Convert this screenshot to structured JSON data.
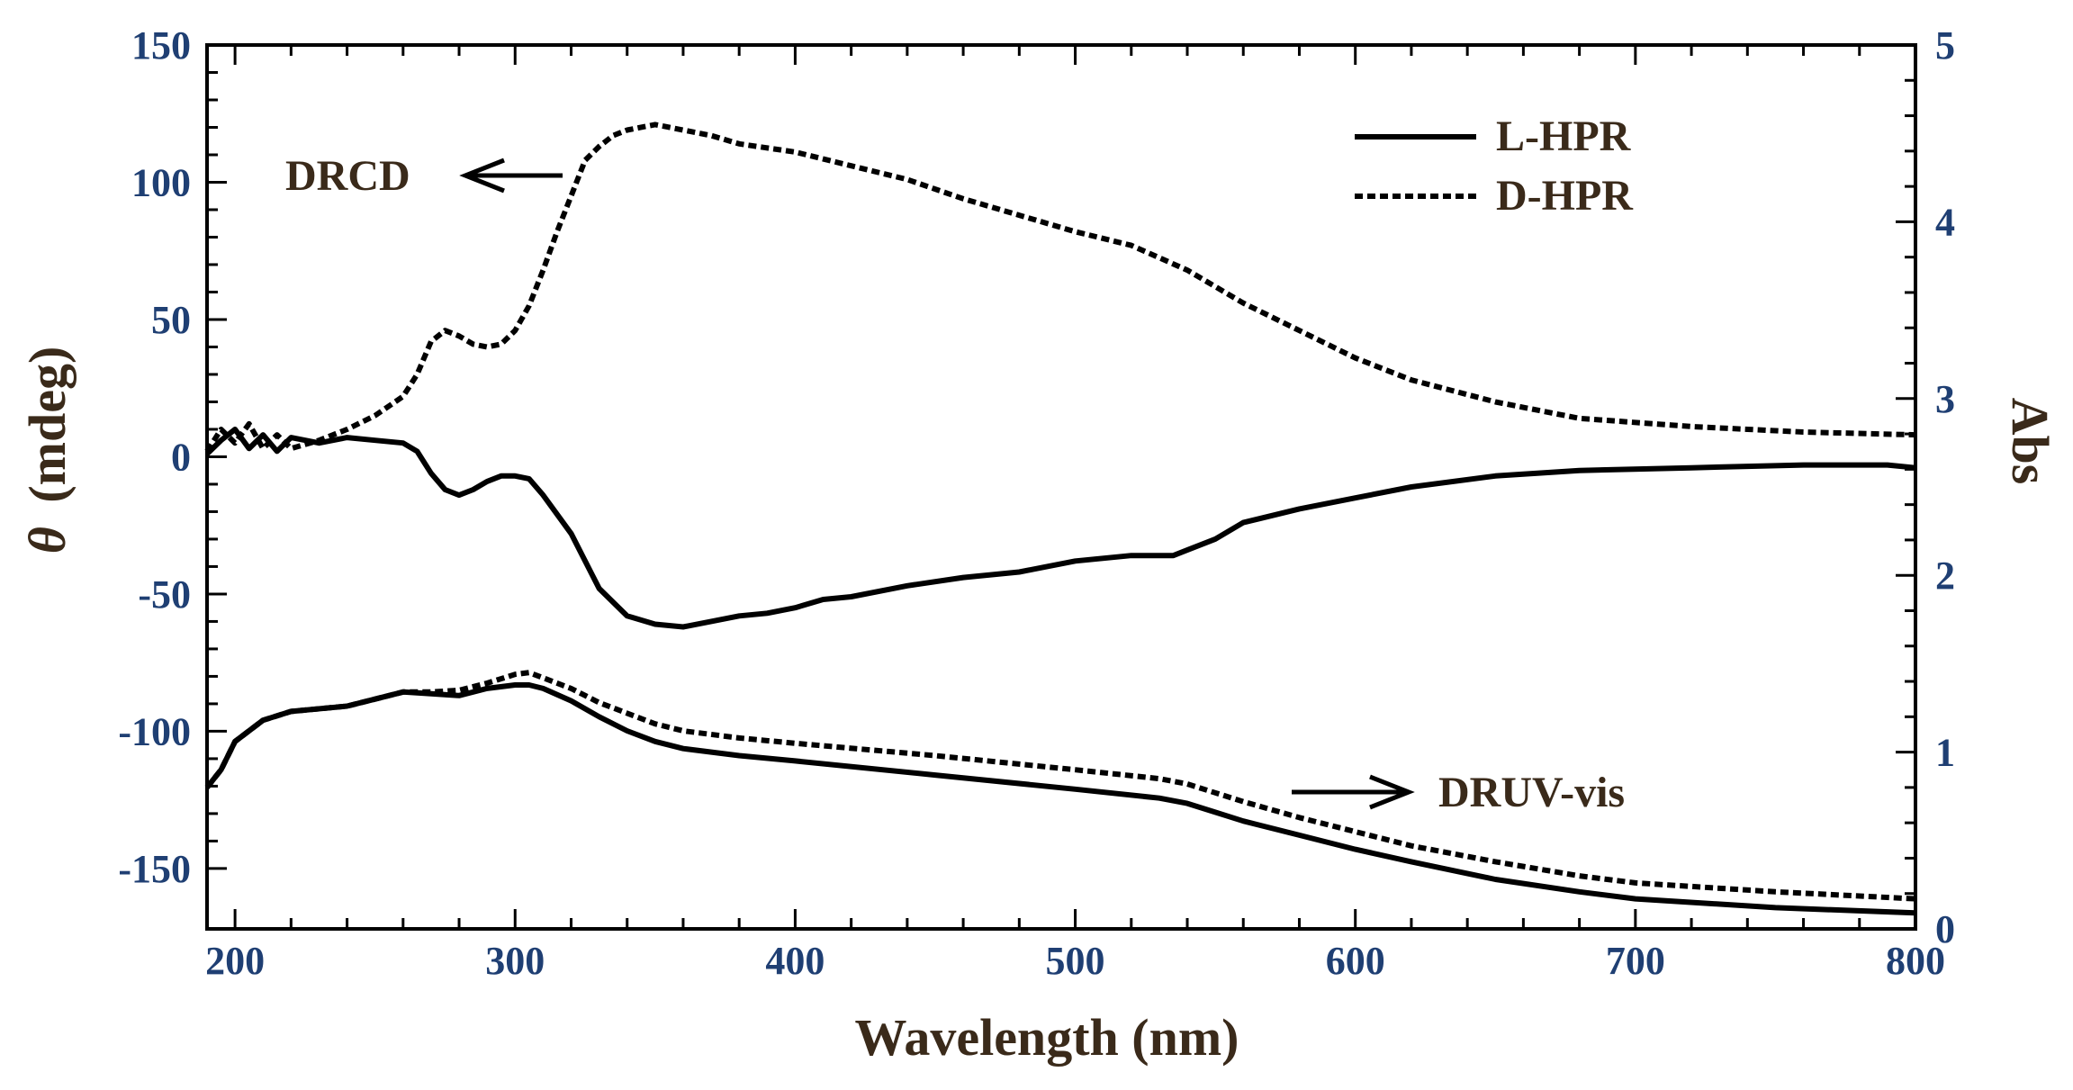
{
  "chart_data": {
    "type": "line",
    "title": "",
    "xlabel": "Wavelength (nm)",
    "ylabel_left_symbol": "θ",
    "ylabel_left_unit": "(mdeg)",
    "ylabel_right": "Abs",
    "xlim": [
      190,
      800
    ],
    "ylim_left": [
      -172,
      150
    ],
    "ylim_right": [
      0,
      5
    ],
    "x_ticks": [
      200,
      300,
      400,
      500,
      600,
      700,
      800
    ],
    "y_left_ticks": [
      150,
      100,
      50,
      0,
      -50,
      -100,
      -150
    ],
    "y_right_ticks": [
      5,
      4,
      3,
      2,
      1,
      0
    ],
    "grid": false,
    "legend_position": "top-right",
    "legend": [
      {
        "label": "L-HPR",
        "style": "solid"
      },
      {
        "label": "D-HPR",
        "style": "dashed"
      }
    ],
    "annotations": [
      {
        "text": "DRCD",
        "arrow": "left"
      },
      {
        "text": "DRUV-vis",
        "arrow": "right"
      }
    ],
    "series": [
      {
        "name": "L-HPR DRCD",
        "axis": "left",
        "style": "solid",
        "x": [
          190,
          195,
          200,
          205,
          210,
          215,
          220,
          230,
          240,
          250,
          260,
          265,
          270,
          275,
          280,
          285,
          290,
          295,
          300,
          305,
          310,
          320,
          330,
          340,
          350,
          360,
          370,
          380,
          390,
          400,
          410,
          420,
          440,
          460,
          480,
          500,
          520,
          535,
          540,
          550,
          560,
          580,
          600,
          620,
          650,
          680,
          720,
          760,
          790,
          800
        ],
        "values": [
          1,
          6,
          10,
          3,
          8,
          2,
          7,
          5,
          7,
          6,
          5,
          2,
          -6,
          -12,
          -14,
          -12,
          -9,
          -7,
          -7,
          -8,
          -14,
          -28,
          -48,
          -58,
          -61,
          -62,
          -60,
          -58,
          -57,
          -55,
          -52,
          -51,
          -47,
          -44,
          -42,
          -38,
          -36,
          -36,
          -34,
          -30,
          -24,
          -19,
          -15,
          -11,
          -7,
          -5,
          -4,
          -3,
          -3,
          -4
        ]
      },
      {
        "name": "D-HPR DRCD",
        "axis": "left",
        "style": "dashed",
        "x": [
          190,
          195,
          200,
          205,
          210,
          215,
          220,
          230,
          240,
          250,
          260,
          265,
          270,
          275,
          280,
          285,
          290,
          295,
          300,
          305,
          310,
          315,
          320,
          325,
          330,
          335,
          340,
          350,
          360,
          370,
          380,
          400,
          420,
          440,
          460,
          480,
          500,
          520,
          540,
          560,
          580,
          600,
          620,
          650,
          680,
          720,
          760,
          800
        ],
        "values": [
          2,
          10,
          5,
          12,
          3,
          8,
          3,
          6,
          10,
          15,
          22,
          30,
          42,
          46,
          44,
          41,
          40,
          41,
          46,
          55,
          68,
          82,
          95,
          108,
          113,
          117,
          119,
          121,
          119,
          117,
          114,
          111,
          106,
          101,
          94,
          88,
          82,
          77,
          68,
          56,
          46,
          36,
          28,
          20,
          14,
          11,
          9,
          8
        ]
      },
      {
        "name": "L-HPR DRUV-vis",
        "axis": "right",
        "style": "solid",
        "x": [
          190,
          195,
          200,
          210,
          220,
          240,
          250,
          260,
          270,
          280,
          290,
          300,
          305,
          310,
          320,
          330,
          340,
          350,
          360,
          380,
          400,
          450,
          500,
          530,
          540,
          550,
          560,
          580,
          600,
          620,
          650,
          680,
          700,
          750,
          800
        ],
        "values": [
          0.8,
          0.9,
          1.06,
          1.18,
          1.23,
          1.26,
          1.3,
          1.34,
          1.33,
          1.32,
          1.36,
          1.38,
          1.38,
          1.36,
          1.29,
          1.2,
          1.12,
          1.06,
          1.02,
          0.98,
          0.95,
          0.87,
          0.79,
          0.74,
          0.71,
          0.66,
          0.61,
          0.53,
          0.45,
          0.38,
          0.28,
          0.21,
          0.17,
          0.12,
          0.09
        ]
      },
      {
        "name": "D-HPR DRUV-vis",
        "axis": "right",
        "style": "dashed",
        "x": [
          190,
          195,
          200,
          210,
          220,
          240,
          250,
          260,
          270,
          280,
          290,
          300,
          305,
          310,
          320,
          330,
          340,
          350,
          360,
          380,
          400,
          450,
          500,
          530,
          540,
          550,
          560,
          580,
          600,
          620,
          650,
          680,
          700,
          750,
          800
        ],
        "values": [
          0.8,
          0.9,
          1.06,
          1.18,
          1.23,
          1.26,
          1.3,
          1.34,
          1.34,
          1.35,
          1.39,
          1.44,
          1.45,
          1.42,
          1.36,
          1.28,
          1.22,
          1.16,
          1.12,
          1.08,
          1.05,
          0.98,
          0.9,
          0.85,
          0.82,
          0.77,
          0.72,
          0.63,
          0.55,
          0.47,
          0.38,
          0.3,
          0.26,
          0.21,
          0.17
        ]
      }
    ]
  }
}
